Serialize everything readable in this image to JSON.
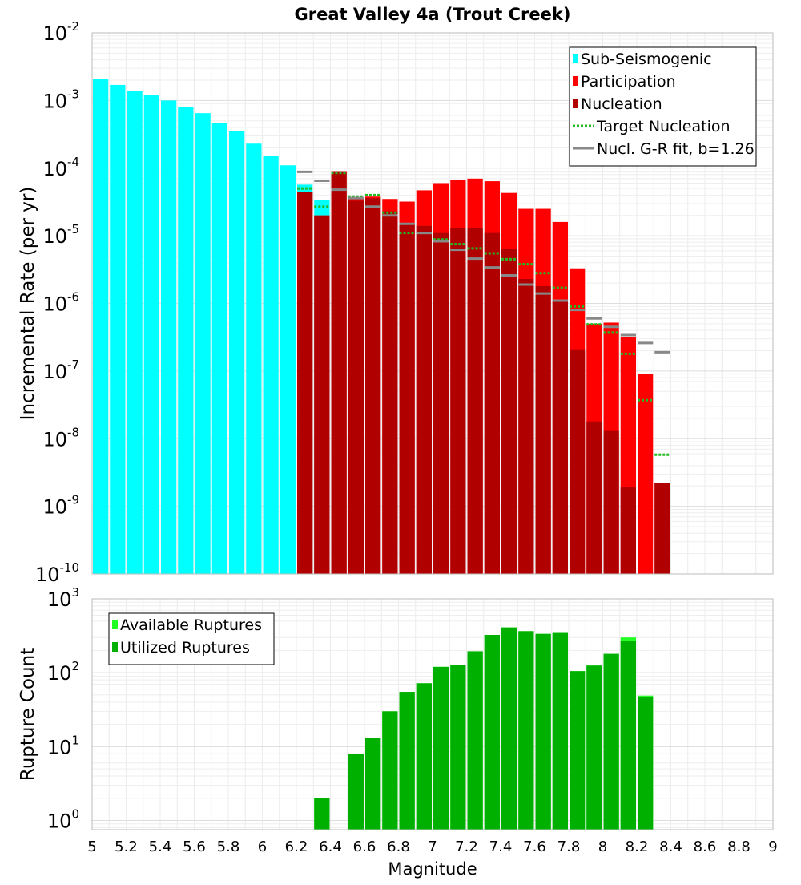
{
  "chart_data": [
    {
      "type": "bar",
      "title": "Great Valley 4a (Trout Creek)",
      "xlabel": "",
      "ylabel": "Incremental Rate (per yr)",
      "yscale": "log",
      "ylim": [
        1e-10,
        0.01
      ],
      "xlim": [
        5,
        9
      ],
      "bin_width": 0.1,
      "legend_position": "top-right",
      "grid": true,
      "series": [
        {
          "name": "Sub-Seismogenic",
          "style": "bar",
          "color": "#00ffff",
          "x": [
            5.05,
            5.15,
            5.25,
            5.35,
            5.45,
            5.55,
            5.65,
            5.75,
            5.85,
            5.95,
            6.05,
            6.15,
            6.25,
            6.35
          ],
          "values": [
            0.0021,
            0.0017,
            0.0014,
            0.0012,
            0.001,
            0.0008,
            0.00065,
            0.00046,
            0.00035,
            0.00023,
            0.00015,
            0.00011,
            5.7e-05,
            3.4e-05
          ]
        },
        {
          "name": "Participation",
          "style": "bar",
          "color": "#ff0000",
          "x": [
            6.25,
            6.35,
            6.45,
            6.55,
            6.65,
            6.75,
            6.85,
            6.95,
            7.05,
            7.15,
            7.25,
            7.35,
            7.45,
            7.55,
            7.65,
            7.75,
            7.85,
            7.95,
            8.05,
            8.15,
            8.25,
            8.35
          ],
          "values": [
            4.5e-05,
            2e-05,
            9e-05,
            3.5e-05,
            3.8e-05,
            3.5e-05,
            3.2e-05,
            4.7e-05,
            6e-05,
            6.6e-05,
            7e-05,
            6.4e-05,
            4.3e-05,
            2.5e-05,
            2.5e-05,
            1.6e-05,
            3.3e-06,
            5e-07,
            5.2e-07,
            3.2e-07,
            9e-08,
            2.2e-09
          ]
        },
        {
          "name": "Nucleation",
          "style": "bar",
          "color": "#b00000",
          "x": [
            6.25,
            6.35,
            6.45,
            6.55,
            6.65,
            6.75,
            6.85,
            6.95,
            7.05,
            7.15,
            7.25,
            7.35,
            7.45,
            7.55,
            7.65,
            7.75,
            7.85,
            7.95,
            8.05,
            8.15,
            8.25,
            8.35
          ],
          "values": [
            4.5e-05,
            2e-05,
            9e-05,
            3.3e-05,
            3.6e-05,
            2.3e-05,
            1.5e-05,
            1.4e-05,
            1.1e-05,
            1.3e-05,
            1.3e-05,
            1.1e-05,
            6.5e-06,
            2.3e-06,
            1.8e-06,
            1.1e-06,
            2.1e-07,
            1.8e-08,
            1.3e-08,
            1.9e-09,
            null,
            2.2e-09
          ]
        },
        {
          "name": "Target Nucleation",
          "style": "dotted-step",
          "color": "#22bb22",
          "x": [
            6.25,
            6.35,
            6.45,
            6.55,
            6.65,
            6.75,
            6.85,
            6.95,
            7.05,
            7.15,
            7.25,
            7.35,
            7.45,
            7.55,
            7.65,
            7.75,
            7.85,
            7.95,
            8.05,
            8.15,
            8.25,
            8.35
          ],
          "values": [
            5e-05,
            2.7e-05,
            8.5e-05,
            3.8e-05,
            4e-05,
            2.2e-05,
            1.1e-05,
            1.1e-05,
            8.8e-06,
            7.5e-06,
            6.5e-06,
            5.5e-06,
            4.5e-06,
            3.8e-06,
            2.8e-06,
            1.7e-06,
            9e-07,
            4.9e-07,
            3.7e-07,
            1.8e-07,
            3.7e-08,
            5.8e-09
          ]
        },
        {
          "name": "Nucl. G-R fit, b=1.26",
          "style": "solid-step",
          "color": "#888888",
          "x": [
            6.25,
            6.35,
            6.45,
            6.55,
            6.65,
            6.75,
            6.85,
            6.95,
            7.05,
            7.15,
            7.25,
            7.35,
            7.45,
            7.55,
            7.65,
            7.75,
            7.85,
            7.95,
            8.05,
            8.15,
            8.25,
            8.35
          ],
          "values": [
            8.8e-05,
            6.5e-05,
            4.8e-05,
            3.6e-05,
            2.7e-05,
            2e-05,
            1.5e-05,
            1.1e-05,
            8.3e-06,
            6.2e-06,
            4.6e-06,
            3.4e-06,
            2.6e-06,
            1.9e-06,
            1.4e-06,
            1.1e-06,
            8e-07,
            6e-07,
            4.5e-07,
            3.4e-07,
            2.6e-07,
            1.9e-07
          ]
        }
      ]
    },
    {
      "type": "bar",
      "title": "",
      "xlabel": "Magnitude",
      "ylabel": "Rupture Count",
      "yscale": "log",
      "ylim": [
        0.75,
        1000
      ],
      "xlim": [
        5,
        9
      ],
      "bin_width": 0.1,
      "legend_position": "top-left",
      "grid": true,
      "x_ticks": [
        "5",
        "5.2",
        "5.4",
        "5.6",
        "5.8",
        "6",
        "6.2",
        "6.4",
        "6.6",
        "6.8",
        "7",
        "7.2",
        "7.4",
        "7.6",
        "7.8",
        "8",
        "8.2",
        "8.4",
        "8.6",
        "8.8",
        "9"
      ],
      "series": [
        {
          "name": "Available Ruptures",
          "style": "bar",
          "color": "#22ff22",
          "x": [
            6.35,
            6.55,
            6.65,
            6.75,
            6.85,
            6.95,
            7.05,
            7.15,
            7.25,
            7.35,
            7.45,
            7.55,
            7.65,
            7.75,
            7.85,
            7.95,
            8.05,
            8.15,
            8.25
          ],
          "values": [
            2,
            8,
            13,
            30,
            55,
            72,
            120,
            128,
            195,
            325,
            410,
            365,
            335,
            345,
            105,
            125,
            180,
            300,
            49
          ]
        },
        {
          "name": "Utilized Ruptures",
          "style": "bar",
          "color": "#00b000",
          "x": [
            6.35,
            6.55,
            6.65,
            6.75,
            6.85,
            6.95,
            7.05,
            7.15,
            7.25,
            7.35,
            7.45,
            7.55,
            7.65,
            7.75,
            7.85,
            7.95,
            8.05,
            8.15,
            8.25
          ],
          "values": [
            2,
            8,
            13,
            30,
            55,
            72,
            120,
            128,
            195,
            325,
            410,
            365,
            335,
            345,
            105,
            125,
            180,
            270,
            47
          ]
        }
      ]
    }
  ]
}
